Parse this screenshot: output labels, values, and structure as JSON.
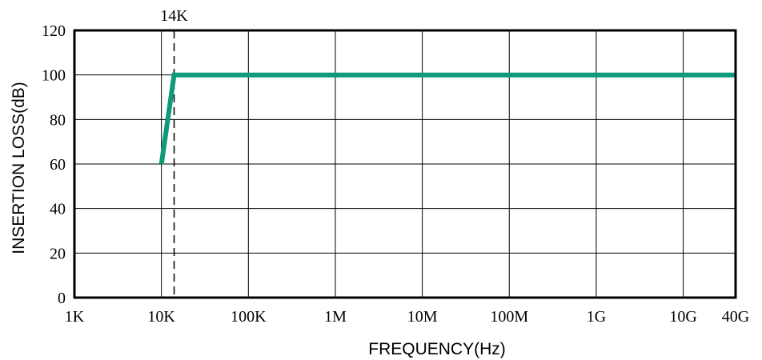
{
  "chart_data": {
    "type": "line",
    "x_scale": "log",
    "xlabel": "FREQUENCY(Hz)",
    "ylabel": "INSERTION LOSS(dB)",
    "xlim": [
      1000,
      40000000000
    ],
    "ylim": [
      0,
      120
    ],
    "grid": true,
    "x_ticks": [
      {
        "value": 1000,
        "label": "1K"
      },
      {
        "value": 10000,
        "label": "10K"
      },
      {
        "value": 100000,
        "label": "100K"
      },
      {
        "value": 1000000,
        "label": "1M"
      },
      {
        "value": 10000000,
        "label": "10M"
      },
      {
        "value": 100000000,
        "label": "100M"
      },
      {
        "value": 1000000000,
        "label": "1G"
      },
      {
        "value": 10000000000,
        "label": "10G"
      },
      {
        "value": 40000000000,
        "label": "40G"
      }
    ],
    "y_ticks": [
      0,
      20,
      40,
      60,
      80,
      100,
      120
    ],
    "marker": {
      "value": 14000,
      "label": "14K"
    },
    "series": [
      {
        "color": "#0f9a7a",
        "x": [
          10000,
          14000,
          40000000000
        ],
        "y": [
          60,
          100,
          100
        ]
      }
    ]
  }
}
